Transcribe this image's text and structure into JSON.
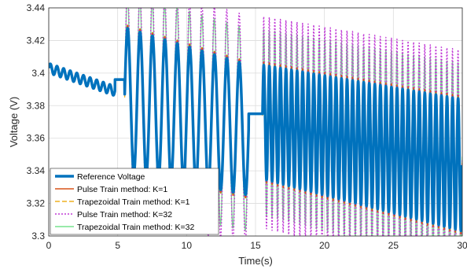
{
  "chart_data": {
    "type": "line",
    "title": "",
    "xlabel": "Time(s)",
    "ylabel": "Voltage (V)",
    "xlim": [
      0,
      30
    ],
    "ylim": [
      3.3,
      3.44
    ],
    "xticks": [
      "0",
      "5",
      "10",
      "15",
      "20",
      "25",
      "30"
    ],
    "yticks": [
      "3.3",
      "3.32",
      "3.34",
      "3.36",
      "3.38",
      "3.4",
      "3.42",
      "3.44"
    ],
    "grid": true,
    "legend_position": "bottom-left",
    "segments": [
      {
        "t0": 0,
        "t1": 4.8,
        "kind": "ripple",
        "mean_start": 3.403,
        "mean_end": 3.389,
        "amp": 0.003,
        "cycles": 10
      },
      {
        "t0": 4.8,
        "t1": 5.5,
        "kind": "plateau",
        "value": 3.396
      },
      {
        "t0": 5.5,
        "t1": 14.5,
        "kind": "oscillation",
        "cycles": 10,
        "max_start": 3.428,
        "max_end": 3.405,
        "min_start": 3.34,
        "min_end": 3.325
      },
      {
        "t0": 14.5,
        "t1": 15.5,
        "kind": "plateau",
        "value": 3.375
      },
      {
        "t0": 15.5,
        "t1": 30,
        "kind": "dense",
        "cycles": 36,
        "max_start": 3.405,
        "max_end": 3.384,
        "min_start": 3.335,
        "min_end": 3.303
      }
    ],
    "series": [
      {
        "name": "Reference Voltage",
        "color": "#0072BD",
        "width": 3.5,
        "dash": "",
        "overshoot": 0,
        "phase": 0
      },
      {
        "name": "Pulse Train method: K=1",
        "color": "#D95319",
        "width": 1.4,
        "dash": "",
        "overshoot": 0.002,
        "phase": 0.04
      },
      {
        "name": "Trapezoidal Train method: K=1",
        "color": "#EDB120",
        "width": 1.4,
        "dash": "6,3",
        "overshoot": 0.001,
        "phase": -0.04
      },
      {
        "name": "Pulse Train method: K=32",
        "color": "#C13CD6",
        "width": 1.4,
        "dash": "2,2",
        "overshoot": 0.03,
        "phase": 0.08
      },
      {
        "name": "Trapezoidal Train method: K=32",
        "color": "#77E38E",
        "width": 1.4,
        "dash": "",
        "overshoot": 0.022,
        "phase": 0.12
      }
    ]
  }
}
